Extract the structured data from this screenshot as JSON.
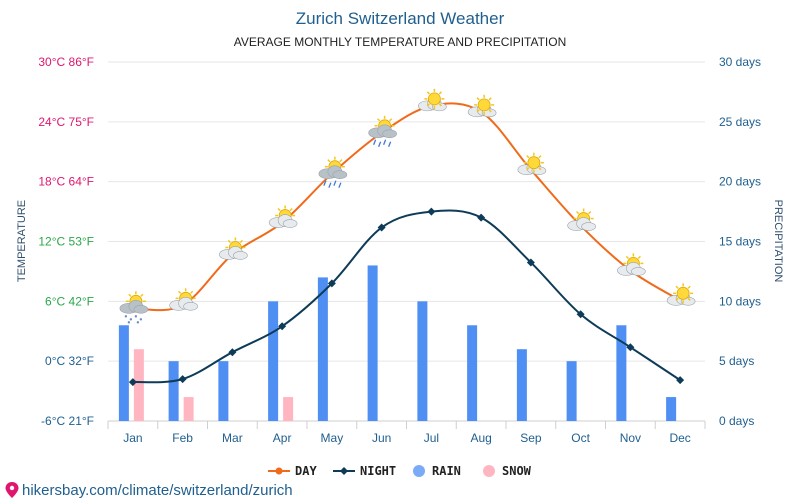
{
  "title": "Zurich Switzerland Weather",
  "subtitle": "AVERAGE MONTHLY TEMPERATURE AND PRECIPITATION",
  "left_axis_label": "TEMPERATURE",
  "right_axis_label": "PRECIPITATION",
  "footer_url": "hikersbay.com/climate/switzerland/zurich",
  "colors": {
    "day": "#f06a1a",
    "night": "#0d3b58",
    "rain": "#4f8ff3",
    "snow": "#ffb6c1",
    "grid": "#e6e6e6",
    "title": "#1f5f8f"
  },
  "legend": [
    {
      "key": "day",
      "label": "DAY",
      "icon": "line-circle-orange"
    },
    {
      "key": "night",
      "label": "NIGHT",
      "icon": "line-diamond-navy"
    },
    {
      "key": "rain",
      "label": "RAIN",
      "icon": "circle-blue"
    },
    {
      "key": "snow",
      "label": "SNOW",
      "icon": "circle-pink"
    }
  ],
  "chart_data": {
    "type": "line",
    "categories": [
      "Jan",
      "Feb",
      "Mar",
      "Apr",
      "May",
      "Jun",
      "Jul",
      "Aug",
      "Sep",
      "Oct",
      "Nov",
      "Dec"
    ],
    "left_ticks": [
      {
        "label": "30°C 86°F",
        "value": 30,
        "color": "#e0166e"
      },
      {
        "label": "24°C 75°F",
        "value": 24,
        "color": "#e0166e"
      },
      {
        "label": "18°C 64°F",
        "value": 18,
        "color": "#e0166e"
      },
      {
        "label": "12°C 53°F",
        "value": 12,
        "color": "#2aa84a"
      },
      {
        "label": "6°C 42°F",
        "value": 6,
        "color": "#2aa84a"
      },
      {
        "label": "0°C 32°F",
        "value": 0,
        "color": "#1f5f8f"
      },
      {
        "label": "-6°C 21°F",
        "value": -6,
        "color": "#1f5f8f"
      }
    ],
    "right_ticks": [
      {
        "label": "30 days",
        "value": 30
      },
      {
        "label": "25 days",
        "value": 25
      },
      {
        "label": "20 days",
        "value": 20
      },
      {
        "label": "15 days",
        "value": 15
      },
      {
        "label": "10 days",
        "value": 10
      },
      {
        "label": "5 days",
        "value": 5
      },
      {
        "label": "0 days",
        "value": 0
      }
    ],
    "ylim_temp": [
      -6,
      30
    ],
    "ylim_days": [
      0,
      30
    ],
    "grid": true,
    "legend_position": "bottom",
    "series": [
      {
        "name": "DAY",
        "unit": "°C",
        "values": [
          5.3,
          5.6,
          10.7,
          13.9,
          18.8,
          22.9,
          25.6,
          25.0,
          19.2,
          13.6,
          9.1,
          6.1
        ]
      },
      {
        "name": "NIGHT",
        "unit": "°C",
        "values": [
          -2.1,
          -1.8,
          0.9,
          3.5,
          7.8,
          13.4,
          15.0,
          14.4,
          9.9,
          4.7,
          1.4,
          -1.9
        ]
      },
      {
        "name": "RAIN",
        "unit": "days",
        "values": [
          8,
          5,
          5,
          10,
          12,
          13,
          10,
          8,
          6,
          5,
          8,
          2
        ]
      },
      {
        "name": "SNOW",
        "unit": "days",
        "values": [
          6,
          2,
          0,
          2,
          0,
          0,
          0,
          0,
          0,
          0,
          0,
          0
        ]
      }
    ],
    "weather_icons": [
      "cloud-snow-sun-icon",
      "cloud-sun-icon",
      "cloud-sun-icon",
      "cloud-sun-icon",
      "cloud-rain-sun-icon",
      "cloud-rain-sun-icon",
      "sun-cloud-icon",
      "sun-cloud-icon",
      "sun-cloud-icon",
      "cloud-sun-icon",
      "cloud-sun-icon",
      "sun-cloud-icon"
    ]
  }
}
